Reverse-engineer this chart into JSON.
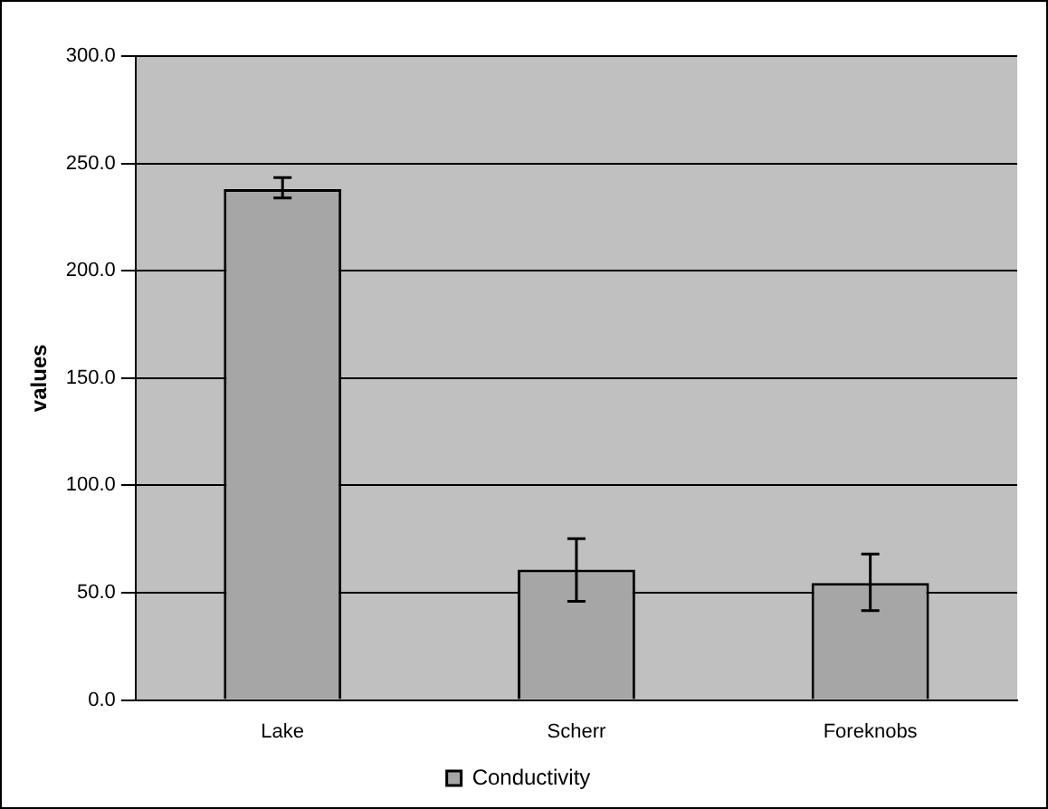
{
  "chart_data": {
    "type": "bar",
    "ylabel": "values",
    "categories": [
      "Lake",
      "Scherr",
      "Foreknobs"
    ],
    "series": [
      {
        "name": "Conductivity",
        "color": "#a6a6a6",
        "values": [
          238,
          60.8,
          54.5
        ],
        "errors": [
          [
            233.9,
            243.4
          ],
          [
            46,
            75.2
          ],
          [
            41.7,
            68
          ]
        ]
      }
    ],
    "ylim": [
      0,
      300
    ],
    "yticks": [
      {
        "value": 0,
        "label": "0.0"
      },
      {
        "value": 50,
        "label": "50.0"
      },
      {
        "value": 100,
        "label": "100.0"
      },
      {
        "value": 150,
        "label": "150.0"
      },
      {
        "value": 200,
        "label": "200.0"
      },
      {
        "value": 250,
        "label": "250.0"
      },
      {
        "value": 300,
        "label": "300.0"
      }
    ],
    "grid": "y",
    "legend": "bottom"
  }
}
